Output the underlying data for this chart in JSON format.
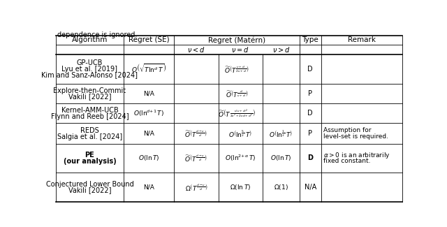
{
  "title_text": "dependence is ignored.",
  "col_headers_row1": [
    "Algorithm",
    "Regret (SE)",
    "Regret (Matérn)",
    "Type",
    "Remark"
  ],
  "matern_subheaders": [
    "$\\nu < d$",
    "$\\nu = d$",
    "$\\nu > d$"
  ],
  "rows": [
    {
      "algo": [
        "GP-UCB",
        "Lyu et al. [2019]",
        "Kim and Sanz-Alonso [2024]"
      ],
      "bold_algo": false,
      "se": "$O\\left(\\sqrt{T\\ln^d T}\\right)$",
      "mat_v_less": "",
      "mat_v_eq": "$\\widetilde{O}\\left(T^{\\frac{\\nu+d}{2\\nu+d}}\\right)$",
      "mat_v_greater": "",
      "mat_span": true,
      "type": "D",
      "remark": []
    },
    {
      "algo": [
        "Explore-then-Commit",
        "Vakili [2022]"
      ],
      "bold_algo": false,
      "se": "N/A",
      "mat_v_less": "",
      "mat_v_eq": "$\\widetilde{O}\\left(T^{\\frac{d}{\\nu+d}}\\right)$",
      "mat_v_greater": "",
      "mat_span": true,
      "type": "P",
      "remark": []
    },
    {
      "algo": [
        "Kernel-AMM-UCB",
        "Flynn and Reeb [2024]"
      ],
      "bold_algo": false,
      "se": "$O\\left(\\ln^{d+1} T\\right)$",
      "mat_v_less": "",
      "mat_v_eq": "$\\widetilde{O}\\left(T^{\\frac{\\nu(\\nu+d)^2}{2\\nu^2+2\\nu d+d^2}}\\right)$",
      "mat_v_greater": "",
      "mat_span": true,
      "type": "D",
      "remark": []
    },
    {
      "algo": [
        "REDS",
        "Salgia et al. [2024]"
      ],
      "bold_algo": false,
      "se": "N/A",
      "mat_v_less": "$\\widetilde{O}\\left(T^{\\frac{d-\\nu}{d}}\\right)$",
      "mat_v_eq": "$O\\left(\\ln^{\\frac{5}{2}} T\\right)$",
      "mat_v_greater": "$O\\left(\\ln^{\\frac{1}{2}} T\\right)$",
      "mat_span": false,
      "type": "P",
      "remark": [
        "Assumption for",
        "level-set is required."
      ]
    },
    {
      "algo": [
        "PE",
        "(our analysis)"
      ],
      "bold_algo": true,
      "se": "$O\\left(\\ln T\\right)$",
      "mat_v_less": "$\\widetilde{O}\\left(T^{\\frac{d-\\nu}{d}}\\right)$",
      "mat_v_eq": "$O\\left(\\ln^{2+\\alpha} T\\right)$",
      "mat_v_greater": "$O\\left(\\ln T\\right)$",
      "mat_span": false,
      "type": "D",
      "remark": [
        "$\\alpha > 0$ is an arbitrarily",
        "fixed constant."
      ]
    },
    {
      "algo": [
        "Conjectured Lower Bound",
        "Vakili [2022]"
      ],
      "bold_algo": false,
      "se": "N/A",
      "mat_v_less": "$\\Omega\\left(T^{\\frac{d-\\nu}{d}}\\right)$",
      "mat_v_eq": "$\\Omega(\\ln T)$",
      "mat_v_greater": "$\\Omega(1)$",
      "mat_span": false,
      "type": "N/A",
      "remark": []
    }
  ],
  "bg_color": "#ffffff",
  "text_color": "#000000",
  "fontsize": 7.0,
  "header_fontsize": 7.5,
  "lw_thick": 1.2,
  "lw_thin": 0.6
}
